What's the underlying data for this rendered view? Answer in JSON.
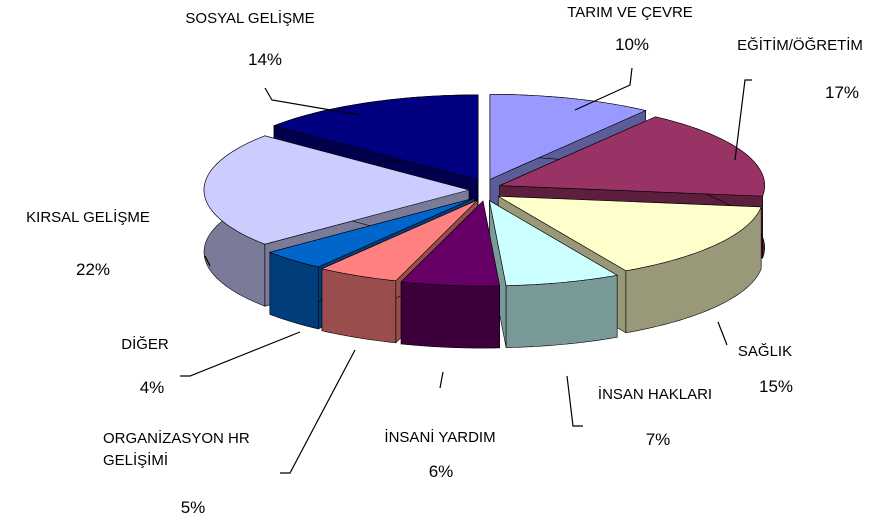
{
  "chart_data": {
    "type": "pie3d",
    "categories": [
      "TARIM VE ÇEVRE",
      "EĞİTİM/ÖĞRETİM",
      "SAĞLIK",
      "İNSAN HAKLARI",
      "İNSANİ YARDIM",
      "ORGANİZASYON HR GELİŞİMİ",
      "DİĞER",
      "KIRSAL GELİŞME",
      "SOSYAL GELİŞME"
    ],
    "values": [
      10,
      17,
      15,
      7,
      6,
      5,
      4,
      22,
      14
    ],
    "value_labels": [
      "10%",
      "17%",
      "15%",
      "7%",
      "6%",
      "5%",
      "4%",
      "22%",
      "14%"
    ],
    "colors": [
      "#9999ff",
      "#993366",
      "#ffffcc",
      "#ccffff",
      "#660066",
      "#ff8080",
      "#0066cc",
      "#ccccff",
      "#000080"
    ]
  }
}
